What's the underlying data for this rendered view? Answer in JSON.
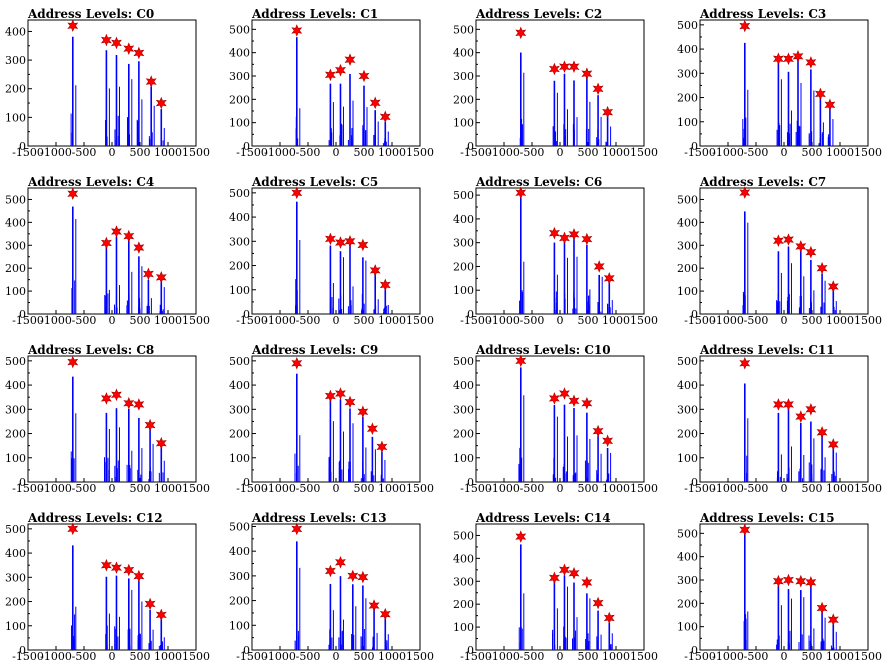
{
  "chart_data": [
    {
      "type": "bar",
      "title": "Address Levels: C0",
      "xlim": [
        -1500,
        1500
      ],
      "ylim": [
        0,
        440
      ],
      "yticks": [
        0,
        100,
        200,
        300,
        400
      ],
      "xticks": [
        -1500,
        -1000,
        -500,
        0,
        500,
        1000,
        1500
      ],
      "peaks": [
        {
          "x": -700,
          "y": 420
        },
        {
          "x": -100,
          "y": 370
        },
        {
          "x": 80,
          "y": 360
        },
        {
          "x": 300,
          "y": 340
        },
        {
          "x": 480,
          "y": 325
        },
        {
          "x": 700,
          "y": 225
        },
        {
          "x": 880,
          "y": 150
        }
      ]
    },
    {
      "type": "bar",
      "title": "Address Levels: C1",
      "xlim": [
        -1500,
        1500
      ],
      "ylim": [
        0,
        540
      ],
      "yticks": [
        0,
        100,
        200,
        300,
        400,
        500
      ],
      "xticks": [
        -1500,
        -1000,
        -500,
        0,
        500,
        1000,
        1500
      ],
      "peaks": [
        {
          "x": -700,
          "y": 495
        },
        {
          "x": -100,
          "y": 305
        },
        {
          "x": 80,
          "y": 325
        },
        {
          "x": 250,
          "y": 370
        },
        {
          "x": 500,
          "y": 300
        },
        {
          "x": 700,
          "y": 185
        },
        {
          "x": 880,
          "y": 125
        }
      ]
    },
    {
      "type": "bar",
      "title": "Address Levels: C2",
      "xlim": [
        -1500,
        1500
      ],
      "ylim": [
        0,
        540
      ],
      "yticks": [
        0,
        100,
        200,
        300,
        400,
        500
      ],
      "xticks": [
        -1500,
        -1000,
        -500,
        0,
        500,
        1000,
        1500
      ],
      "peaks": [
        {
          "x": -700,
          "y": 485
        },
        {
          "x": -100,
          "y": 330
        },
        {
          "x": 80,
          "y": 340
        },
        {
          "x": 250,
          "y": 340
        },
        {
          "x": 480,
          "y": 310
        },
        {
          "x": 680,
          "y": 245
        },
        {
          "x": 850,
          "y": 145
        }
      ]
    },
    {
      "type": "bar",
      "title": "Address Levels: C3",
      "xlim": [
        -1500,
        1500
      ],
      "ylim": [
        0,
        520
      ],
      "yticks": [
        0,
        100,
        200,
        300,
        400,
        500
      ],
      "xticks": [
        -1500,
        -1000,
        -500,
        0,
        500,
        1000,
        1500
      ],
      "peaks": [
        {
          "x": -700,
          "y": 495
        },
        {
          "x": -100,
          "y": 360
        },
        {
          "x": 80,
          "y": 360
        },
        {
          "x": 250,
          "y": 370
        },
        {
          "x": 480,
          "y": 345
        },
        {
          "x": 650,
          "y": 215
        },
        {
          "x": 820,
          "y": 170
        }
      ]
    },
    {
      "type": "bar",
      "title": "Address Levels: C4",
      "xlim": [
        -1500,
        1500
      ],
      "ylim": [
        0,
        550
      ],
      "yticks": [
        0,
        100,
        200,
        300,
        400,
        500
      ],
      "xticks": [
        -1500,
        -1000,
        -500,
        0,
        500,
        1000,
        1500
      ],
      "peaks": [
        {
          "x": -700,
          "y": 525
        },
        {
          "x": -100,
          "y": 310
        },
        {
          "x": 80,
          "y": 360
        },
        {
          "x": 300,
          "y": 340
        },
        {
          "x": 480,
          "y": 290
        },
        {
          "x": 650,
          "y": 175
        },
        {
          "x": 880,
          "y": 160
        }
      ]
    },
    {
      "type": "bar",
      "title": "Address Levels: C5",
      "xlim": [
        -1500,
        1500
      ],
      "ylim": [
        0,
        520
      ],
      "yticks": [
        0,
        100,
        200,
        300,
        400,
        500
      ],
      "xticks": [
        -1500,
        -1000,
        -500,
        0,
        500,
        1000,
        1500
      ],
      "peaks": [
        {
          "x": -700,
          "y": 500
        },
        {
          "x": -100,
          "y": 310
        },
        {
          "x": 80,
          "y": 295
        },
        {
          "x": 250,
          "y": 300
        },
        {
          "x": 480,
          "y": 285
        },
        {
          "x": 700,
          "y": 180
        },
        {
          "x": 880,
          "y": 120
        }
      ]
    },
    {
      "type": "bar",
      "title": "Address Levels: C6",
      "xlim": [
        -1500,
        1500
      ],
      "ylim": [
        0,
        530
      ],
      "yticks": [
        0,
        100,
        200,
        300,
        400,
        500
      ],
      "xticks": [
        -1500,
        -1000,
        -500,
        0,
        500,
        1000,
        1500
      ],
      "peaks": [
        {
          "x": -700,
          "y": 510
        },
        {
          "x": -100,
          "y": 340
        },
        {
          "x": 80,
          "y": 320
        },
        {
          "x": 250,
          "y": 335
        },
        {
          "x": 480,
          "y": 315
        },
        {
          "x": 700,
          "y": 200
        },
        {
          "x": 880,
          "y": 150
        }
      ]
    },
    {
      "type": "bar",
      "title": "Address Levels: C7",
      "xlim": [
        -1500,
        1500
      ],
      "ylim": [
        0,
        550
      ],
      "yticks": [
        0,
        100,
        200,
        300,
        400,
        500
      ],
      "xticks": [
        -1500,
        -1000,
        -500,
        0,
        500,
        1000,
        1500
      ],
      "peaks": [
        {
          "x": -700,
          "y": 530
        },
        {
          "x": -100,
          "y": 320
        },
        {
          "x": 80,
          "y": 325
        },
        {
          "x": 300,
          "y": 295
        },
        {
          "x": 480,
          "y": 270
        },
        {
          "x": 680,
          "y": 200
        },
        {
          "x": 880,
          "y": 120
        }
      ]
    },
    {
      "type": "bar",
      "title": "Address Levels: C8",
      "xlim": [
        -1500,
        1500
      ],
      "ylim": [
        0,
        520
      ],
      "yticks": [
        0,
        100,
        200,
        300,
        400,
        500
      ],
      "xticks": [
        -1500,
        -1000,
        -500,
        0,
        500,
        1000,
        1500
      ],
      "peaks": [
        {
          "x": -700,
          "y": 495
        },
        {
          "x": -100,
          "y": 345
        },
        {
          "x": 80,
          "y": 360
        },
        {
          "x": 300,
          "y": 325
        },
        {
          "x": 480,
          "y": 320
        },
        {
          "x": 680,
          "y": 235
        },
        {
          "x": 880,
          "y": 160
        }
      ]
    },
    {
      "type": "bar",
      "title": "Address Levels: C9",
      "xlim": [
        -1500,
        1500
      ],
      "ylim": [
        0,
        520
      ],
      "yticks": [
        0,
        100,
        200,
        300,
        400,
        500
      ],
      "xticks": [
        -1500,
        -1000,
        -500,
        0,
        500,
        1000,
        1500
      ],
      "peaks": [
        {
          "x": -700,
          "y": 490
        },
        {
          "x": -100,
          "y": 355
        },
        {
          "x": 80,
          "y": 365
        },
        {
          "x": 250,
          "y": 330
        },
        {
          "x": 480,
          "y": 290
        },
        {
          "x": 650,
          "y": 220
        },
        {
          "x": 820,
          "y": 145
        }
      ]
    },
    {
      "type": "bar",
      "title": "Address Levels: C10",
      "xlim": [
        -1500,
        1500
      ],
      "ylim": [
        0,
        520
      ],
      "yticks": [
        0,
        100,
        200,
        300,
        400,
        500
      ],
      "xticks": [
        -1500,
        -1000,
        -500,
        0,
        500,
        1000,
        1500
      ],
      "peaks": [
        {
          "x": -700,
          "y": 500
        },
        {
          "x": -100,
          "y": 345
        },
        {
          "x": 80,
          "y": 365
        },
        {
          "x": 250,
          "y": 335
        },
        {
          "x": 480,
          "y": 325
        },
        {
          "x": 680,
          "y": 210
        },
        {
          "x": 850,
          "y": 170
        }
      ]
    },
    {
      "type": "bar",
      "title": "Address Levels: C11",
      "xlim": [
        -1500,
        1500
      ],
      "ylim": [
        0,
        520
      ],
      "yticks": [
        0,
        100,
        200,
        300,
        400,
        500
      ],
      "xticks": [
        -1500,
        -1000,
        -500,
        0,
        500,
        1000,
        1500
      ],
      "peaks": [
        {
          "x": -700,
          "y": 490
        },
        {
          "x": -100,
          "y": 320
        },
        {
          "x": 80,
          "y": 320
        },
        {
          "x": 300,
          "y": 270
        },
        {
          "x": 480,
          "y": 300
        },
        {
          "x": 680,
          "y": 205
        },
        {
          "x": 880,
          "y": 155
        }
      ]
    },
    {
      "type": "bar",
      "title": "Address Levels: C12",
      "xlim": [
        -1500,
        1500
      ],
      "ylim": [
        0,
        520
      ],
      "yticks": [
        0,
        100,
        200,
        300,
        400,
        500
      ],
      "xticks": [
        -1500,
        -1000,
        -500,
        0,
        500,
        1000,
        1500
      ],
      "peaks": [
        {
          "x": -700,
          "y": 500
        },
        {
          "x": -100,
          "y": 350
        },
        {
          "x": 80,
          "y": 340
        },
        {
          "x": 300,
          "y": 330
        },
        {
          "x": 480,
          "y": 305
        },
        {
          "x": 680,
          "y": 190
        },
        {
          "x": 880,
          "y": 145
        }
      ]
    },
    {
      "type": "bar",
      "title": "Address Levels: C13",
      "xlim": [
        -1500,
        1500
      ],
      "ylim": [
        0,
        510
      ],
      "yticks": [
        0,
        100,
        200,
        300,
        400,
        500
      ],
      "xticks": [
        -1500,
        -1000,
        -500,
        0,
        500,
        1000,
        1500
      ],
      "peaks": [
        {
          "x": -700,
          "y": 490
        },
        {
          "x": -100,
          "y": 320
        },
        {
          "x": 80,
          "y": 355
        },
        {
          "x": 300,
          "y": 300
        },
        {
          "x": 480,
          "y": 295
        },
        {
          "x": 680,
          "y": 180
        },
        {
          "x": 880,
          "y": 145
        }
      ]
    },
    {
      "type": "bar",
      "title": "Address Levels: C14",
      "xlim": [
        -1500,
        1500
      ],
      "ylim": [
        0,
        550
      ],
      "yticks": [
        0,
        100,
        200,
        300,
        400,
        500
      ],
      "xticks": [
        -1500,
        -1000,
        -500,
        0,
        500,
        1000,
        1500
      ],
      "peaks": [
        {
          "x": -700,
          "y": 495
        },
        {
          "x": -100,
          "y": 315
        },
        {
          "x": 80,
          "y": 350
        },
        {
          "x": 250,
          "y": 335
        },
        {
          "x": 480,
          "y": 295
        },
        {
          "x": 680,
          "y": 205
        },
        {
          "x": 880,
          "y": 140
        }
      ]
    },
    {
      "type": "bar",
      "title": "Address Levels: C15",
      "xlim": [
        -1500,
        1500
      ],
      "ylim": [
        0,
        540
      ],
      "yticks": [
        0,
        100,
        200,
        300,
        400,
        500
      ],
      "xticks": [
        -1500,
        -1000,
        -500,
        0,
        500,
        1000,
        1500
      ],
      "peaks": [
        {
          "x": -700,
          "y": 515
        },
        {
          "x": -100,
          "y": 295
        },
        {
          "x": 80,
          "y": 300
        },
        {
          "x": 300,
          "y": 295
        },
        {
          "x": 480,
          "y": 290
        },
        {
          "x": 680,
          "y": 180
        },
        {
          "x": 880,
          "y": 130
        }
      ]
    }
  ],
  "style": {
    "bar_color": "#0000ff",
    "marker_color": "#ff0000",
    "axis_color": "#000000",
    "marker_shape": "star-icon"
  }
}
